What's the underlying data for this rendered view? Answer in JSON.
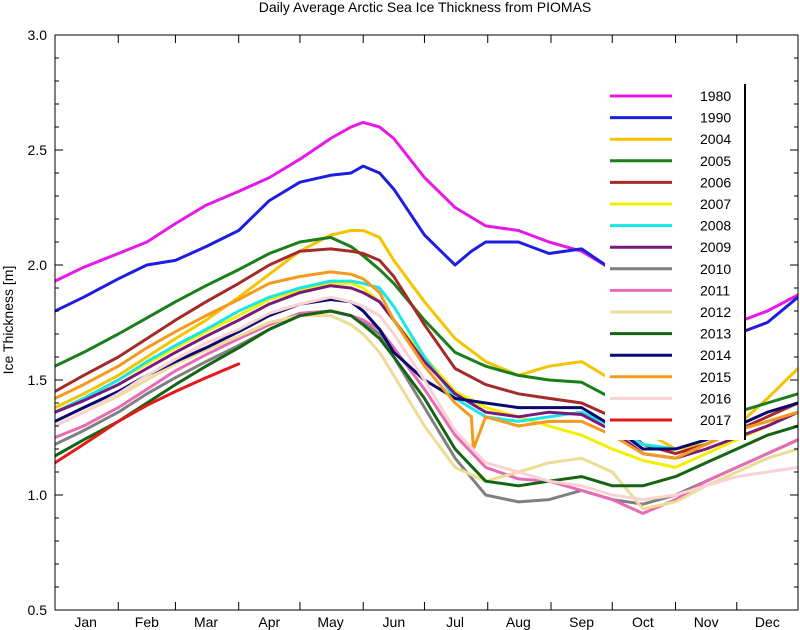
{
  "chart_data": {
    "type": "line",
    "title": "Daily Average Arctic Sea Ice Thickness from PIOMAS",
    "xlabel": "",
    "ylabel": "Ice Thickness  [m]",
    "xlim": [
      1,
      365
    ],
    "ylim": [
      0.5,
      3.0
    ],
    "yticks": [
      "0.5",
      "1.0",
      "1.5",
      "2.0",
      "2.5",
      "3.0"
    ],
    "ytick_values": [
      0.5,
      1.0,
      1.5,
      2.0,
      2.5,
      3.0
    ],
    "months": [
      "Jan",
      "Feb",
      "Mar",
      "Apr",
      "May",
      "Jun",
      "Jul",
      "Aug",
      "Sep",
      "Oct",
      "Nov",
      "Dec"
    ],
    "month_day": [
      16,
      46,
      75,
      106,
      136,
      167,
      197,
      228,
      259,
      289,
      320,
      350
    ],
    "grid": false,
    "legend": "top-right",
    "x_unit": "day of year",
    "series": [
      {
        "name": "1980",
        "color": "#e619e6",
        "x": [
          1,
          15,
          32,
          46,
          60,
          75,
          91,
          106,
          121,
          136,
          146,
          152,
          160,
          167,
          182,
          197,
          212,
          228,
          243,
          259,
          274,
          289,
          305,
          320,
          335,
          350,
          365
        ],
        "values": [
          1.93,
          1.99,
          2.05,
          2.1,
          2.18,
          2.26,
          2.32,
          2.38,
          2.46,
          2.55,
          2.6,
          2.62,
          2.6,
          2.55,
          2.38,
          2.25,
          2.17,
          2.15,
          2.1,
          2.06,
          1.98,
          1.7,
          1.62,
          1.68,
          1.75,
          1.8,
          1.87
        ]
      },
      {
        "name": "1990",
        "color": "#1e1ee0",
        "x": [
          1,
          15,
          32,
          46,
          60,
          75,
          91,
          106,
          121,
          136,
          146,
          152,
          160,
          167,
          182,
          197,
          205,
          212,
          228,
          243,
          259,
          274,
          289,
          305,
          320,
          335,
          350,
          365
        ],
        "values": [
          1.8,
          1.86,
          1.94,
          2.0,
          2.02,
          2.08,
          2.15,
          2.28,
          2.36,
          2.39,
          2.4,
          2.43,
          2.4,
          2.33,
          2.13,
          2.0,
          2.06,
          2.1,
          2.1,
          2.05,
          2.07,
          1.98,
          1.7,
          1.62,
          1.66,
          1.7,
          1.75,
          1.86
        ]
      },
      {
        "name": "2004",
        "color": "#f5c400",
        "x": [
          1,
          15,
          32,
          46,
          60,
          75,
          91,
          106,
          121,
          136,
          146,
          152,
          160,
          167,
          182,
          197,
          212,
          228,
          243,
          259,
          274,
          289,
          305,
          320,
          335,
          350,
          365
        ],
        "values": [
          1.38,
          1.44,
          1.52,
          1.6,
          1.68,
          1.76,
          1.86,
          1.96,
          2.06,
          2.13,
          2.15,
          2.15,
          2.12,
          2.02,
          1.84,
          1.68,
          1.58,
          1.52,
          1.56,
          1.58,
          1.5,
          1.28,
          1.2,
          1.22,
          1.3,
          1.42,
          1.55
        ]
      },
      {
        "name": "2005",
        "color": "#1a7f1a",
        "x": [
          1,
          15,
          32,
          46,
          60,
          75,
          91,
          106,
          121,
          136,
          146,
          152,
          160,
          167,
          182,
          197,
          212,
          228,
          243,
          259,
          274,
          289,
          305,
          320,
          335,
          350,
          365
        ],
        "values": [
          1.56,
          1.62,
          1.7,
          1.77,
          1.84,
          1.91,
          1.98,
          2.05,
          2.1,
          2.12,
          2.08,
          2.04,
          1.98,
          1.92,
          1.76,
          1.62,
          1.56,
          1.52,
          1.5,
          1.49,
          1.42,
          1.28,
          1.25,
          1.3,
          1.36,
          1.4,
          1.44
        ]
      },
      {
        "name": "2006",
        "color": "#a52a2a",
        "x": [
          1,
          15,
          32,
          46,
          60,
          75,
          91,
          106,
          121,
          136,
          146,
          152,
          160,
          167,
          182,
          197,
          212,
          228,
          243,
          259,
          274,
          289,
          305,
          320,
          335,
          350,
          365
        ],
        "values": [
          1.45,
          1.52,
          1.6,
          1.68,
          1.76,
          1.84,
          1.92,
          2.0,
          2.06,
          2.07,
          2.06,
          2.05,
          2.02,
          1.95,
          1.74,
          1.55,
          1.48,
          1.44,
          1.42,
          1.4,
          1.34,
          1.22,
          1.18,
          1.22,
          1.28,
          1.34,
          1.4
        ]
      },
      {
        "name": "2007",
        "color": "#f0f000",
        "x": [
          1,
          15,
          32,
          46,
          60,
          75,
          91,
          106,
          121,
          136,
          146,
          152,
          160,
          167,
          182,
          197,
          212,
          228,
          243,
          259,
          274,
          289,
          305,
          320,
          335,
          350,
          365
        ],
        "values": [
          1.36,
          1.42,
          1.5,
          1.57,
          1.64,
          1.71,
          1.78,
          1.85,
          1.89,
          1.92,
          1.92,
          1.9,
          1.84,
          1.76,
          1.6,
          1.45,
          1.38,
          1.34,
          1.3,
          1.26,
          1.2,
          1.15,
          1.12,
          1.18,
          1.24,
          1.3,
          1.36
        ]
      },
      {
        "name": "2008",
        "color": "#19e6e6",
        "x": [
          1,
          15,
          32,
          46,
          60,
          75,
          91,
          106,
          121,
          136,
          146,
          152,
          160,
          167,
          182,
          197,
          212,
          228,
          243,
          259,
          274,
          289,
          305,
          320,
          335,
          350,
          365
        ],
        "values": [
          1.36,
          1.42,
          1.5,
          1.58,
          1.65,
          1.72,
          1.8,
          1.86,
          1.9,
          1.93,
          1.93,
          1.92,
          1.9,
          1.82,
          1.6,
          1.42,
          1.34,
          1.32,
          1.34,
          1.36,
          1.3,
          1.22,
          1.2,
          1.24,
          1.28,
          1.32,
          1.36
        ]
      },
      {
        "name": "2009",
        "color": "#7a197a",
        "x": [
          1,
          15,
          32,
          46,
          60,
          75,
          91,
          106,
          121,
          136,
          146,
          152,
          160,
          167,
          182,
          197,
          212,
          228,
          243,
          259,
          274,
          289,
          305,
          320,
          335,
          350,
          365
        ],
        "values": [
          1.36,
          1.41,
          1.48,
          1.55,
          1.62,
          1.69,
          1.76,
          1.83,
          1.88,
          1.91,
          1.9,
          1.88,
          1.84,
          1.76,
          1.58,
          1.44,
          1.36,
          1.34,
          1.36,
          1.35,
          1.28,
          1.18,
          1.16,
          1.2,
          1.25,
          1.3,
          1.36
        ]
      },
      {
        "name": "2010",
        "color": "#808080",
        "x": [
          1,
          15,
          32,
          46,
          60,
          75,
          91,
          106,
          121,
          136,
          146,
          152,
          160,
          167,
          182,
          197,
          212,
          228,
          243,
          259,
          274,
          289,
          305,
          320,
          335,
          350,
          365
        ],
        "values": [
          1.22,
          1.28,
          1.36,
          1.44,
          1.51,
          1.58,
          1.65,
          1.72,
          1.78,
          1.8,
          1.78,
          1.75,
          1.7,
          1.6,
          1.38,
          1.16,
          1.0,
          0.97,
          0.98,
          1.02,
          0.98,
          0.96,
          1.0,
          1.06,
          1.12,
          1.18,
          1.24
        ]
      },
      {
        "name": "2011",
        "color": "#e66cb5",
        "x": [
          1,
          15,
          32,
          46,
          60,
          75,
          91,
          106,
          121,
          136,
          146,
          152,
          160,
          167,
          182,
          197,
          212,
          228,
          243,
          259,
          274,
          289,
          305,
          320,
          335,
          350,
          365
        ],
        "values": [
          1.25,
          1.3,
          1.38,
          1.46,
          1.54,
          1.61,
          1.68,
          1.74,
          1.79,
          1.8,
          1.78,
          1.76,
          1.72,
          1.64,
          1.46,
          1.26,
          1.12,
          1.07,
          1.06,
          1.02,
          0.98,
          0.92,
          0.98,
          1.06,
          1.12,
          1.18,
          1.24
        ]
      },
      {
        "name": "2012",
        "color": "#ebdc96",
        "x": [
          1,
          15,
          32,
          46,
          60,
          75,
          91,
          106,
          121,
          136,
          146,
          152,
          160,
          167,
          182,
          197,
          212,
          228,
          243,
          259,
          274,
          289,
          305,
          320,
          335,
          350,
          365
        ],
        "values": [
          1.3,
          1.36,
          1.43,
          1.5,
          1.57,
          1.63,
          1.69,
          1.75,
          1.78,
          1.78,
          1.74,
          1.7,
          1.62,
          1.52,
          1.3,
          1.12,
          1.06,
          1.1,
          1.14,
          1.16,
          1.1,
          0.94,
          0.97,
          1.04,
          1.1,
          1.16,
          1.2
        ]
      },
      {
        "name": "2013",
        "color": "#146414",
        "x": [
          1,
          15,
          32,
          46,
          60,
          75,
          91,
          106,
          121,
          136,
          146,
          152,
          160,
          167,
          182,
          197,
          212,
          228,
          243,
          259,
          274,
          289,
          305,
          320,
          335,
          350,
          365
        ],
        "values": [
          1.17,
          1.24,
          1.32,
          1.4,
          1.48,
          1.56,
          1.64,
          1.72,
          1.78,
          1.8,
          1.78,
          1.74,
          1.68,
          1.6,
          1.42,
          1.2,
          1.06,
          1.04,
          1.06,
          1.08,
          1.04,
          1.04,
          1.08,
          1.14,
          1.2,
          1.26,
          1.3
        ]
      },
      {
        "name": "2014",
        "color": "#0a0a6e",
        "x": [
          1,
          15,
          32,
          46,
          60,
          75,
          91,
          106,
          121,
          136,
          146,
          152,
          160,
          167,
          182,
          197,
          212,
          228,
          243,
          259,
          274,
          289,
          305,
          320,
          335,
          350,
          365
        ],
        "values": [
          1.32,
          1.38,
          1.45,
          1.52,
          1.58,
          1.64,
          1.71,
          1.78,
          1.83,
          1.85,
          1.84,
          1.8,
          1.72,
          1.62,
          1.5,
          1.42,
          1.4,
          1.38,
          1.38,
          1.38,
          1.3,
          1.2,
          1.2,
          1.24,
          1.3,
          1.36,
          1.4
        ]
      },
      {
        "name": "2015",
        "color": "#f59a1e",
        "x": [
          1,
          15,
          32,
          46,
          60,
          75,
          91,
          106,
          121,
          136,
          146,
          152,
          160,
          167,
          182,
          197,
          205,
          206,
          212,
          228,
          243,
          259,
          274,
          289,
          305,
          320,
          335,
          350,
          365
        ],
        "values": [
          1.42,
          1.48,
          1.56,
          1.64,
          1.71,
          1.78,
          1.85,
          1.92,
          1.95,
          1.97,
          1.96,
          1.94,
          1.88,
          1.76,
          1.56,
          1.4,
          1.34,
          1.2,
          1.34,
          1.3,
          1.32,
          1.32,
          1.26,
          1.18,
          1.16,
          1.22,
          1.28,
          1.32,
          1.36
        ]
      },
      {
        "name": "2016",
        "color": "#fad2d2",
        "x": [
          1,
          15,
          32,
          46,
          60,
          75,
          91,
          106,
          121,
          136,
          146,
          152,
          160,
          167,
          182,
          197,
          212,
          228,
          243,
          259,
          274,
          289,
          305,
          320,
          335,
          350,
          365
        ],
        "values": [
          1.3,
          1.36,
          1.44,
          1.52,
          1.59,
          1.66,
          1.72,
          1.79,
          1.83,
          1.86,
          1.84,
          1.82,
          1.78,
          1.7,
          1.5,
          1.28,
          1.14,
          1.1,
          1.06,
          1.04,
          1.0,
          0.98,
          1.0,
          1.04,
          1.08,
          1.1,
          1.12
        ]
      },
      {
        "name": "2017",
        "color": "#e61919",
        "x": [
          1,
          15,
          32,
          46,
          60,
          75,
          91
        ],
        "values": [
          1.14,
          1.22,
          1.32,
          1.39,
          1.45,
          1.51,
          1.57
        ]
      }
    ]
  }
}
